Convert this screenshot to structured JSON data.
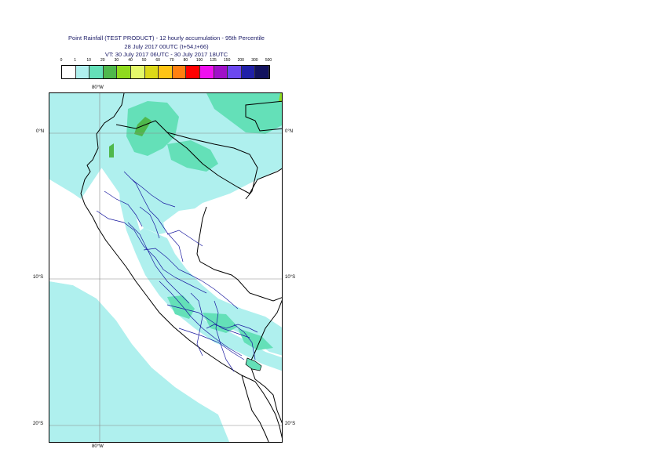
{
  "title": {
    "line1": "Point Rainfall (TEST PRODUCT) - 12 hourly accumulation - 95th Percentile",
    "line2": "28 July 2017 00UTC (t+54,t+66)",
    "line3": "VT: 30 July 2017 06UTC - 30 July 2017 18UTC"
  },
  "legend": {
    "ticks": [
      "0",
      "1",
      "10",
      "20",
      "30",
      "40",
      "50",
      "60",
      "70",
      "80",
      "100",
      "125",
      "150",
      "200",
      "300",
      "500"
    ],
    "colors": [
      "#ffffff",
      "#aff0ee",
      "#64e0b8",
      "#4fb84c",
      "#8fda1e",
      "#e4f86a",
      "#dcd818",
      "#ffc414",
      "#ff8010",
      "#ff0000",
      "#f010f0",
      "#a010c8",
      "#6c48f0",
      "#2020a8",
      "#12125e"
    ]
  },
  "map": {
    "graticule": {
      "top_lon_label": "80°W",
      "bottom_lon_label": "80°W",
      "lat_labels_left": [
        "0°N",
        "10°S",
        "20°S"
      ],
      "lat_labels_right": [
        "0°N",
        "10°S",
        "20°S"
      ]
    }
  }
}
